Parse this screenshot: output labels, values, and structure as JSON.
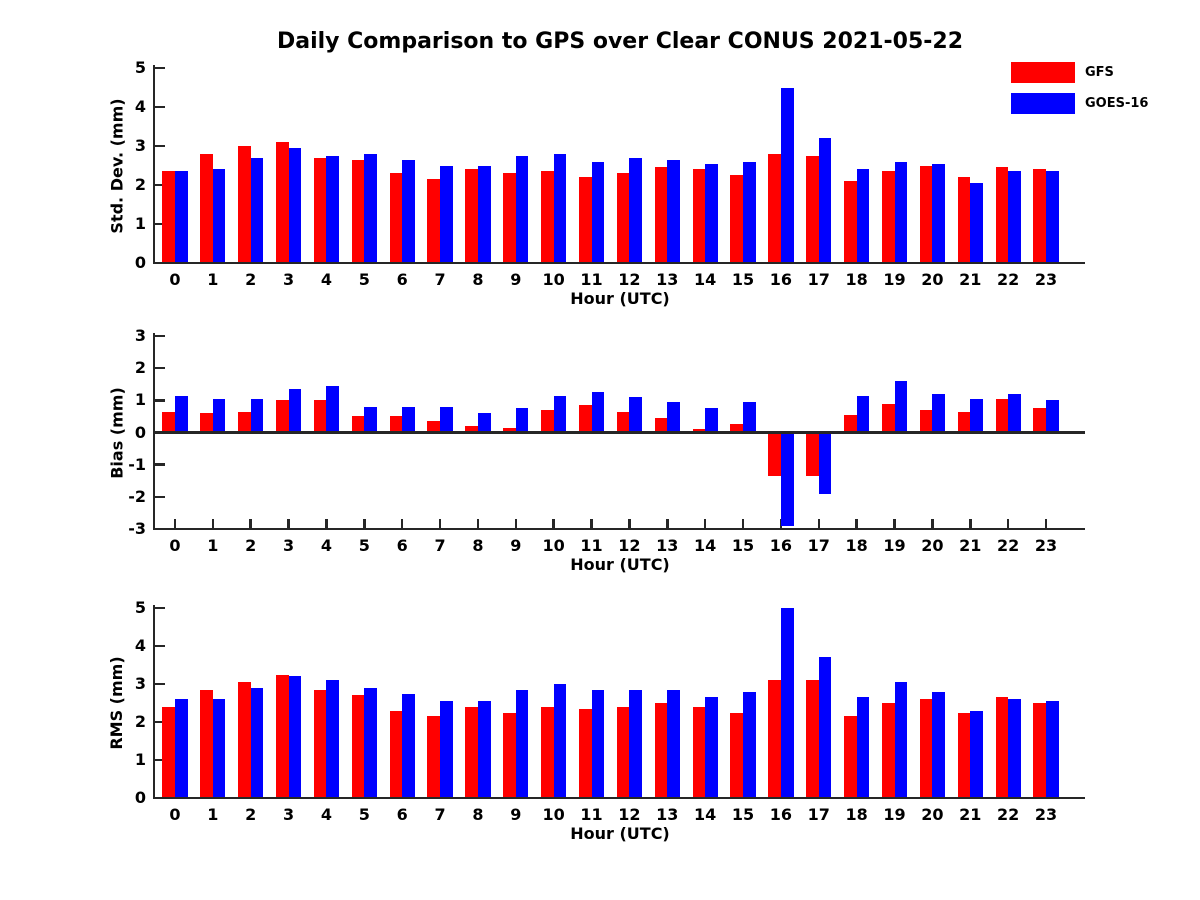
{
  "title": "Daily Comparison to GPS over Clear CONUS 2021-05-22",
  "legend": {
    "items": [
      {
        "label": "GFS",
        "color": "#ff0000"
      },
      {
        "label": "GOES-16",
        "color": "#0000ff"
      }
    ]
  },
  "axis_color": "#262626",
  "chart_data": [
    {
      "type": "bar",
      "title": "Std. Dev. subplot",
      "ylabel": "Std. Dev. (mm)",
      "xlabel": "Hour (UTC)",
      "ylim": [
        0,
        5
      ],
      "yticks": [
        0,
        1,
        2,
        3,
        4,
        5
      ],
      "grid": false,
      "legend_position": "top-right",
      "categories": [
        0,
        1,
        2,
        3,
        4,
        5,
        6,
        7,
        8,
        9,
        10,
        11,
        12,
        13,
        14,
        15,
        16,
        17,
        18,
        19,
        20,
        21,
        22,
        23
      ],
      "series": [
        {
          "name": "GFS",
          "color": "#ff0000",
          "values": [
            2.35,
            2.8,
            3.0,
            3.1,
            2.7,
            2.65,
            2.3,
            2.15,
            2.4,
            2.3,
            2.35,
            2.2,
            2.3,
            2.45,
            2.4,
            2.25,
            2.8,
            2.75,
            2.1,
            2.35,
            2.5,
            2.2,
            2.45,
            2.4
          ]
        },
        {
          "name": "GOES-16",
          "color": "#0000ff",
          "values": [
            2.35,
            2.4,
            2.7,
            2.95,
            2.75,
            2.8,
            2.65,
            2.5,
            2.5,
            2.75,
            2.8,
            2.6,
            2.7,
            2.65,
            2.55,
            2.6,
            4.5,
            3.2,
            2.4,
            2.6,
            2.55,
            2.05,
            2.35,
            2.35
          ]
        }
      ]
    },
    {
      "type": "bar",
      "title": "Bias subplot",
      "ylabel": "Bias (mm)",
      "xlabel": "Hour (UTC)",
      "ylim": [
        -3,
        3
      ],
      "yticks": [
        3,
        2,
        1,
        0,
        -1,
        -2,
        -3
      ],
      "grid": false,
      "categories": [
        0,
        1,
        2,
        3,
        4,
        5,
        6,
        7,
        8,
        9,
        10,
        11,
        12,
        13,
        14,
        15,
        16,
        17,
        18,
        19,
        20,
        21,
        22,
        23
      ],
      "series": [
        {
          "name": "GFS",
          "color": "#ff0000",
          "values": [
            0.65,
            0.6,
            0.65,
            1.0,
            1.0,
            0.5,
            0.5,
            0.35,
            0.2,
            0.15,
            0.7,
            0.85,
            0.65,
            0.45,
            0.1,
            0.25,
            -1.35,
            -1.35,
            0.55,
            0.9,
            0.7,
            0.65,
            1.05,
            0.75
          ]
        },
        {
          "name": "GOES-16",
          "color": "#0000ff",
          "values": [
            1.15,
            1.05,
            1.05,
            1.35,
            1.45,
            0.8,
            0.8,
            0.8,
            0.6,
            0.75,
            1.15,
            1.25,
            1.1,
            0.95,
            0.75,
            0.95,
            -2.9,
            -1.9,
            1.15,
            1.6,
            1.2,
            1.05,
            1.2,
            1.0
          ]
        }
      ]
    },
    {
      "type": "bar",
      "title": "RMS subplot",
      "ylabel": "RMS (mm)",
      "xlabel": "Hour (UTC)",
      "ylim": [
        0,
        5
      ],
      "yticks": [
        0,
        1,
        2,
        3,
        4,
        5
      ],
      "grid": false,
      "categories": [
        0,
        1,
        2,
        3,
        4,
        5,
        6,
        7,
        8,
        9,
        10,
        11,
        12,
        13,
        14,
        15,
        16,
        17,
        18,
        19,
        20,
        21,
        22,
        23
      ],
      "series": [
        {
          "name": "GFS",
          "color": "#ff0000",
          "values": [
            2.4,
            2.85,
            3.05,
            3.25,
            2.85,
            2.7,
            2.3,
            2.15,
            2.4,
            2.25,
            2.4,
            2.35,
            2.4,
            2.5,
            2.4,
            2.25,
            3.1,
            3.1,
            2.15,
            2.5,
            2.6,
            2.25,
            2.65,
            2.5
          ]
        },
        {
          "name": "GOES-16",
          "color": "#0000ff",
          "values": [
            2.6,
            2.6,
            2.9,
            3.2,
            3.1,
            2.9,
            2.75,
            2.55,
            2.55,
            2.85,
            3.0,
            2.85,
            2.85,
            2.85,
            2.65,
            2.8,
            5.0,
            3.7,
            2.65,
            3.05,
            2.8,
            2.3,
            2.6,
            2.55
          ]
        }
      ]
    }
  ]
}
